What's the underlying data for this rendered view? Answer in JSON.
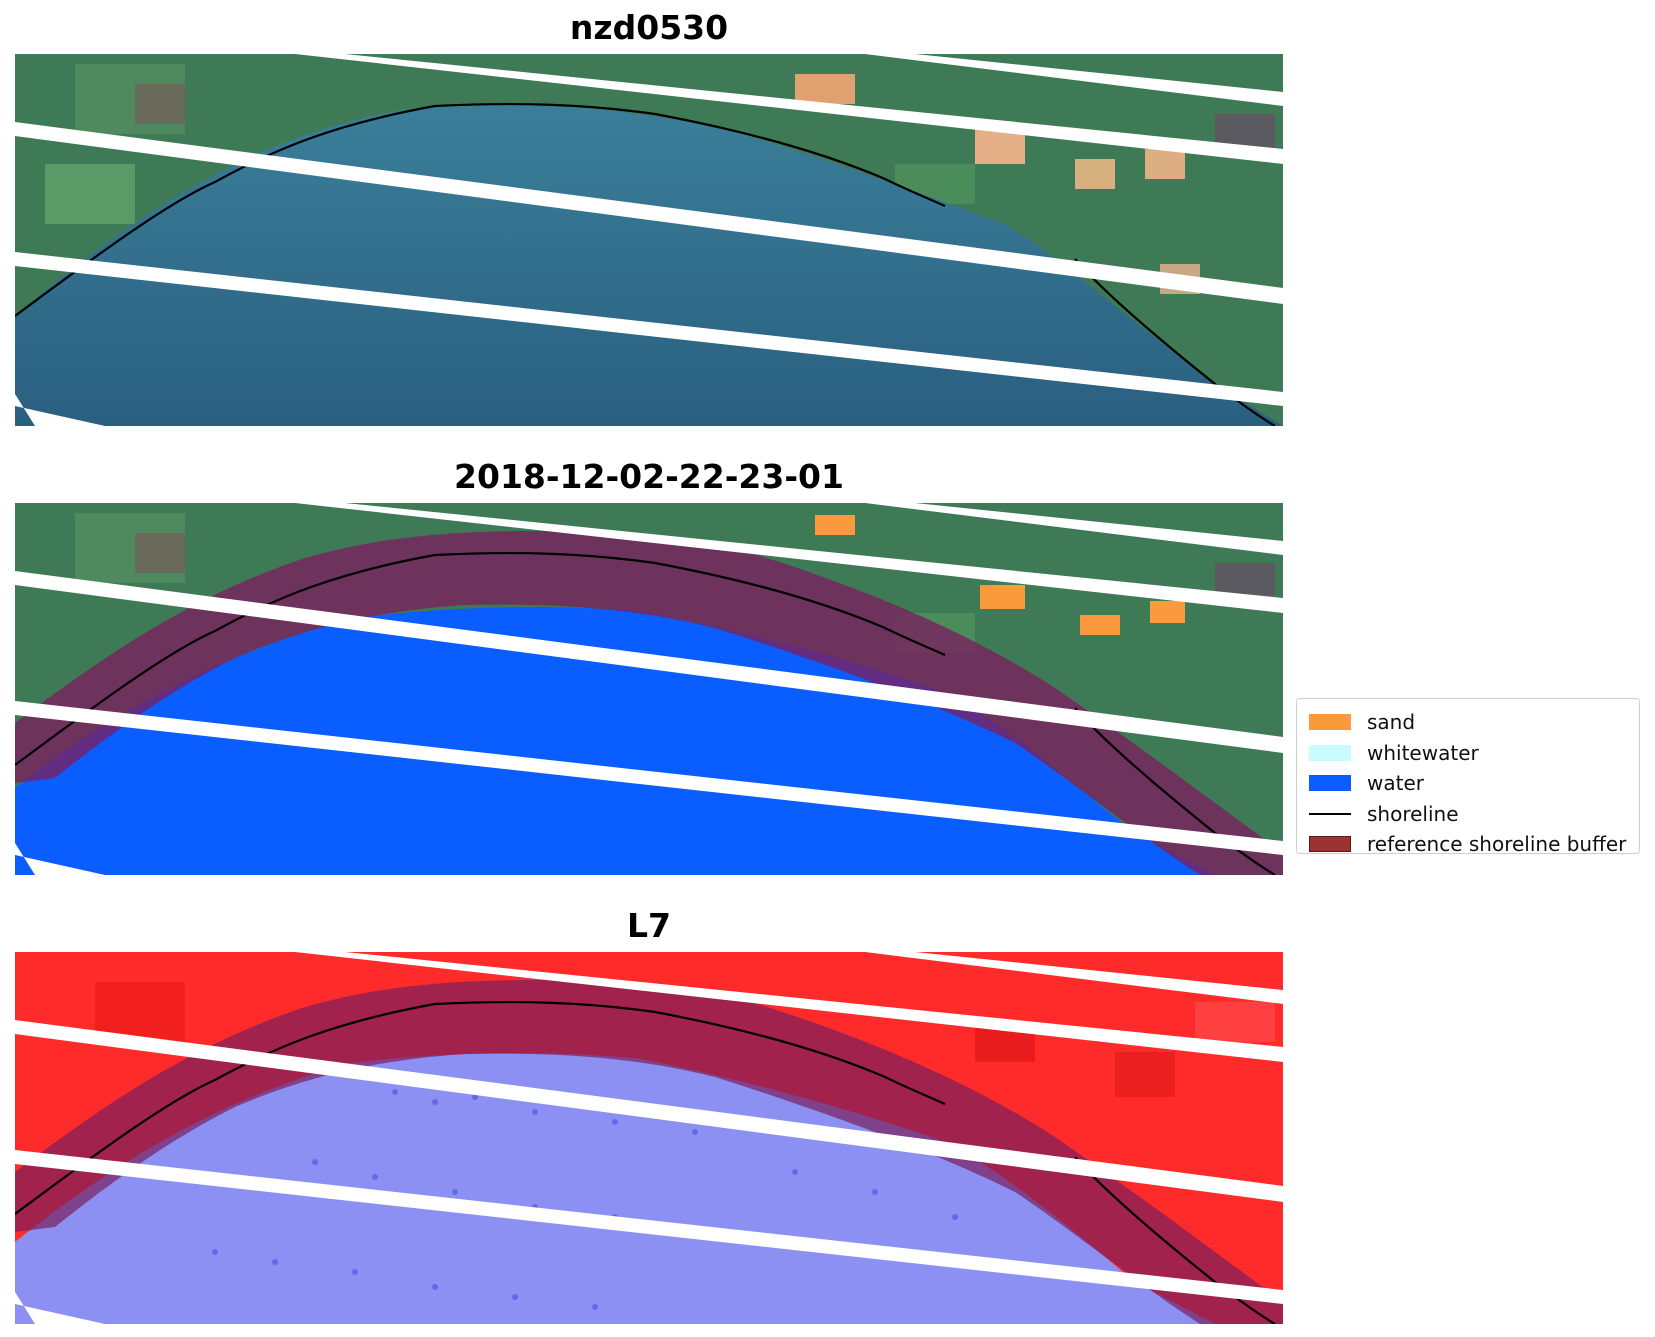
{
  "panels": [
    {
      "title": "nzd0530"
    },
    {
      "title": "2018-12-02-22-23-01"
    },
    {
      "title": "L7"
    }
  ],
  "legend": {
    "items": [
      {
        "label": "sand",
        "color": "#fb9a3c",
        "kind": "patch"
      },
      {
        "label": "whitewater",
        "color": "#c9fbff",
        "kind": "patch"
      },
      {
        "label": "water",
        "color": "#0a5dff",
        "kind": "patch"
      },
      {
        "label": "shoreline",
        "color": "#000000",
        "kind": "line"
      },
      {
        "label": "reference shoreline buffer",
        "color": "#9c3232",
        "kind": "patch"
      }
    ]
  },
  "colors": {
    "land": "#3f7a56",
    "sea": "#2e6a8c",
    "water_class": "#0a5dff",
    "buffer": "#7a1f5e",
    "mndwi_land": "#ff2b2b",
    "mndwi_water": "#8b90f2",
    "no_data_stripe": "#ffffff"
  }
}
